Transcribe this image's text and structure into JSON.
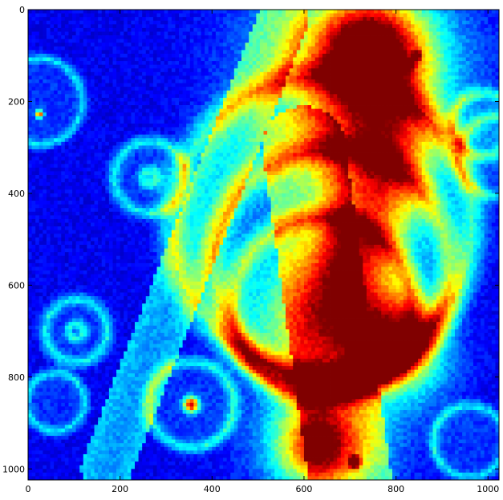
{
  "chart_data": {
    "type": "heatmap",
    "colormap": "jet",
    "grid": false,
    "xlim": [
      0,
      1024
    ],
    "ylim": [
      1024,
      0
    ],
    "x_ticks": [
      0,
      200,
      400,
      600,
      800,
      1000
    ],
    "y_ticks": [
      0,
      200,
      400,
      600,
      800,
      1000
    ],
    "x_tick_labels": [
      "0",
      "200",
      "400",
      "600",
      "800",
      "1000"
    ],
    "y_tick_labels": [
      "0",
      "200",
      "400",
      "600",
      "800",
      "1000"
    ],
    "background_color": "#00008b",
    "features": [
      {
        "kind": "ring",
        "x": 25,
        "y": 200,
        "r": 95,
        "w": 8,
        "v": 0.22
      },
      {
        "kind": "blob",
        "x": 25,
        "y": 228,
        "r": 6,
        "v": 0.7
      },
      {
        "kind": "ring",
        "x": 265,
        "y": 365,
        "r": 80,
        "w": 10,
        "v": 0.24
      },
      {
        "kind": "ring",
        "x": 265,
        "y": 365,
        "r": 14,
        "w": 10,
        "v": 0.25
      },
      {
        "kind": "ring",
        "x": 105,
        "y": 700,
        "r": 70,
        "w": 10,
        "v": 0.24
      },
      {
        "kind": "ring",
        "x": 105,
        "y": 700,
        "r": 16,
        "w": 8,
        "v": 0.25
      },
      {
        "kind": "ring",
        "x": 60,
        "y": 855,
        "r": 65,
        "w": 8,
        "v": 0.22
      },
      {
        "kind": "ring",
        "x": 355,
        "y": 860,
        "r": 95,
        "w": 10,
        "v": 0.25
      },
      {
        "kind": "blob",
        "x": 355,
        "y": 860,
        "r": 12,
        "v": 0.75
      },
      {
        "kind": "ring",
        "x": 960,
        "y": 940,
        "r": 80,
        "w": 8,
        "v": 0.22
      },
      {
        "kind": "band",
        "x1": 555,
        "y1": 20,
        "x2": 170,
        "y2": 1000,
        "w": 55,
        "v": 0.22
      },
      {
        "kind": "band",
        "x1": 600,
        "y1": 300,
        "x2": 700,
        "y2": 1024,
        "w": 90,
        "v": 0.22
      },
      {
        "kind": "ring",
        "x": 640,
        "y": 470,
        "r": 330,
        "w": 22,
        "v": 0.28
      },
      {
        "kind": "ring",
        "x": 660,
        "y": 560,
        "r": 260,
        "w": 22,
        "v": 0.3
      },
      {
        "kind": "ring",
        "x": 640,
        "y": 650,
        "r": 200,
        "w": 18,
        "v": 0.28
      },
      {
        "kind": "ring",
        "x": 990,
        "y": 250,
        "r": 70,
        "w": 10,
        "v": 0.24
      },
      {
        "kind": "ring",
        "x": 1024,
        "y": 320,
        "r": 90,
        "w": 10,
        "v": 0.22
      },
      {
        "kind": "blob",
        "x": 700,
        "y": 140,
        "r": 150,
        "v": 0.35
      },
      {
        "kind": "blob",
        "x": 740,
        "y": 110,
        "r": 110,
        "v": 0.42
      },
      {
        "kind": "blob",
        "x": 745,
        "y": 90,
        "r": 70,
        "v": 0.5
      },
      {
        "kind": "blob",
        "x": 780,
        "y": 280,
        "r": 80,
        "v": 0.4
      },
      {
        "kind": "blob",
        "x": 760,
        "y": 400,
        "r": 70,
        "v": 0.38
      },
      {
        "kind": "blob",
        "x": 720,
        "y": 510,
        "r": 60,
        "v": 0.38
      },
      {
        "kind": "blob",
        "x": 690,
        "y": 610,
        "r": 70,
        "v": 0.36
      },
      {
        "kind": "blob",
        "x": 640,
        "y": 700,
        "r": 90,
        "v": 0.34
      },
      {
        "kind": "blob",
        "x": 790,
        "y": 700,
        "r": 60,
        "v": 0.4
      },
      {
        "kind": "blob",
        "x": 820,
        "y": 760,
        "r": 70,
        "v": 0.36
      },
      {
        "kind": "blob",
        "x": 650,
        "y": 930,
        "r": 100,
        "v": 0.38
      },
      {
        "kind": "blob",
        "x": 630,
        "y": 950,
        "r": 60,
        "v": 0.45
      },
      {
        "kind": "blob",
        "x": 740,
        "y": 45,
        "r": 8,
        "v": 0.95
      },
      {
        "kind": "blob",
        "x": 670,
        "y": 120,
        "r": 8,
        "v": 0.9
      },
      {
        "kind": "blob",
        "x": 690,
        "y": 100,
        "r": 7,
        "v": 0.85
      },
      {
        "kind": "blob",
        "x": 825,
        "y": 120,
        "r": 8,
        "v": 0.95
      },
      {
        "kind": "blob",
        "x": 845,
        "y": 100,
        "r": 6,
        "v": 0.9
      },
      {
        "kind": "blob",
        "x": 750,
        "y": 100,
        "r": 18,
        "v": 0.75
      },
      {
        "kind": "blob",
        "x": 800,
        "y": 180,
        "r": 10,
        "v": 0.8
      },
      {
        "kind": "blob",
        "x": 710,
        "y": 985,
        "r": 8,
        "v": 0.9
      }
    ]
  }
}
